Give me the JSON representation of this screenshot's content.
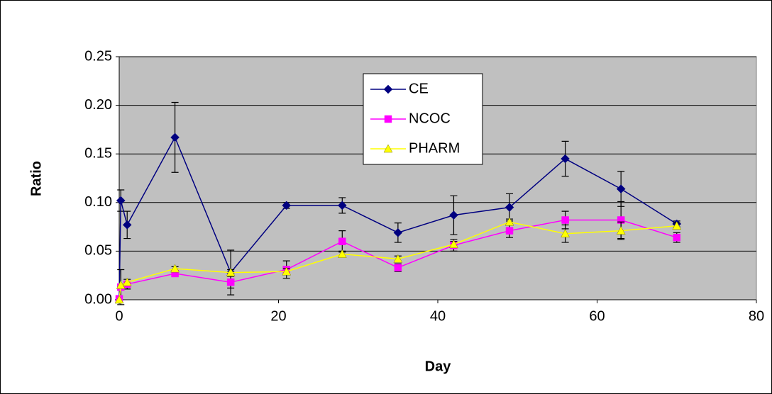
{
  "chart_data": {
    "type": "line",
    "xlabel": "Day",
    "ylabel": "Ratio",
    "x": [
      0,
      0.2,
      1,
      7,
      14,
      21,
      28,
      35,
      42,
      49,
      56,
      63,
      70
    ],
    "series": [
      {
        "name": "CE",
        "color": "#000080",
        "marker": "diamond",
        "values": [
          0.0,
          0.102,
          0.077,
          0.167,
          0.028,
          0.097,
          0.097,
          0.069,
          0.087,
          0.095,
          0.145,
          0.114,
          0.078
        ],
        "errors": [
          null,
          0.011,
          0.014,
          0.036,
          0.023,
          0.003,
          0.008,
          0.01,
          0.02,
          0.014,
          0.018,
          0.018,
          0.003
        ]
      },
      {
        "name": "NCOC",
        "color": "#ff00ff",
        "marker": "square",
        "values": [
          0.001,
          0.013,
          0.016,
          0.027,
          0.018,
          0.031,
          0.06,
          0.033,
          0.056,
          0.071,
          0.082,
          0.082,
          0.064
        ],
        "errors": [
          null,
          0.018,
          0.005,
          0.003,
          0.006,
          0.009,
          0.011,
          0.004,
          0.006,
          0.007,
          0.009,
          0.019,
          0.005
        ]
      },
      {
        "name": "PHARM",
        "color": "#ffff00",
        "marker": "triangle",
        "values": [
          0.0,
          0.015,
          0.018,
          0.032,
          0.028,
          0.029,
          0.047,
          0.042,
          0.057,
          0.08,
          0.068,
          0.071,
          0.076
        ],
        "errors": [
          null,
          null,
          null,
          0.002,
          0.003,
          0.003,
          0.003,
          0.003,
          0.003,
          0.003,
          0.009,
          0.009,
          0.003
        ]
      }
    ],
    "xlim": [
      0,
      80
    ],
    "xticks": [
      0,
      20,
      40,
      60,
      80
    ],
    "ylim": [
      0,
      0.25
    ],
    "yticks": [
      {
        "value": 0,
        "label": "0.00"
      },
      {
        "value": 0.05,
        "label": "0.05"
      },
      {
        "value": 0.1,
        "label": "0.10"
      },
      {
        "value": 0.15,
        "label": "0.15"
      },
      {
        "value": 0.2,
        "label": "0.20"
      },
      {
        "value": 0.25,
        "label": "0.25"
      }
    ],
    "grid": true,
    "plot_background": "#c0c0c0",
    "legend": "top"
  }
}
